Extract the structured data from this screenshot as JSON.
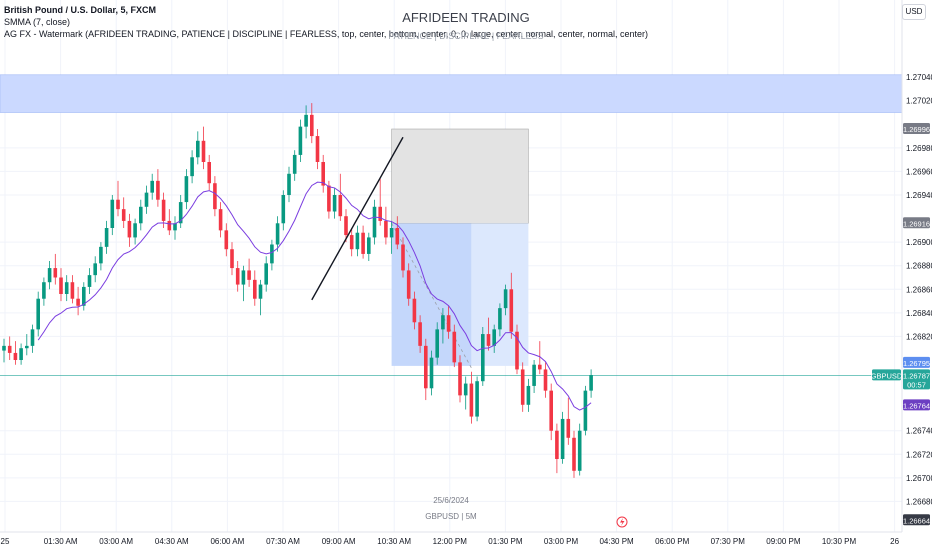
{
  "header": {
    "symbol_line": "British Pound / U.S. Dollar, 5, FXCM",
    "indicator_smma": "SMMA (7, close)",
    "indicator_watermark": "AG FX - Watermark (AFRIDEEN TRADING, PATIENCE | DISCIPLINE | FEARLESS, top, center, bottom, center, 0, 0, large, center, normal, center, normal, center)",
    "currency_button": "USD"
  },
  "watermark": {
    "title": "AFRIDEEN TRADING",
    "subtitle": "PATIENCE  |  DISCIPLINE  |  FEARLESS",
    "date": "25/6/2024",
    "symbol": "GBPUSD | 5M"
  },
  "chart_data": {
    "type": "candlestick",
    "symbol": "GBPUSD",
    "timeframe": "5",
    "x_ticks": [
      "25",
      "01:30 AM",
      "03:00 AM",
      "04:30 AM",
      "06:00 AM",
      "07:30 AM",
      "09:00 AM",
      "10:30 AM",
      "12:00 PM",
      "01:30 PM",
      "03:00 PM",
      "04:30 PM",
      "06:00 PM",
      "07:30 PM",
      "09:00 PM",
      "10:30 PM",
      "26"
    ],
    "y_ticks": [
      "1.27040",
      "1.27020",
      "1.26980",
      "1.26960",
      "1.26940",
      "1.26900",
      "1.26880",
      "1.26860",
      "1.26840",
      "1.26820",
      "1.26740",
      "1.26720",
      "1.26700",
      "1.26680"
    ],
    "ylim": [
      1.2666,
      1.2708
    ],
    "price_labels": [
      {
        "text": "1.26996",
        "value": 1.26996,
        "color": "#787b86"
      },
      {
        "text": "1.26916",
        "value": 1.26916,
        "color": "#787b86"
      },
      {
        "text": "1.26795",
        "value": 1.26795,
        "color": "#5d8ef0"
      },
      {
        "text": "GBPUSD",
        "value": 1.26787,
        "color": "#26a69a"
      },
      {
        "text": "1.26787",
        "value": 1.26787,
        "color": "#26a69a"
      },
      {
        "text": "00:57",
        "value": 1.26787,
        "color": "#26a69a"
      },
      {
        "text": "1.26764",
        "value": 1.26764,
        "color": "#6c3fc2"
      },
      {
        "text": "1.26664",
        "value": 1.26664,
        "color": "#363a45"
      }
    ],
    "current_price": 1.26787,
    "supply_zone": [
      1.2701,
      1.27042
    ],
    "short_position": {
      "entry": 1.26916,
      "stop": 1.26996,
      "target": 1.26795
    },
    "trend_line": [
      [
        1.26851,
        1.26989
      ]
    ],
    "series": [
      {
        "name": "GBPUSD",
        "points": [
          [
            1.26808,
            1.26818,
            1.26798,
            1.26812
          ],
          [
            1.26812,
            1.2682,
            1.268,
            1.26806
          ],
          [
            1.26806,
            1.26816,
            1.26796,
            1.268
          ],
          [
            1.268,
            1.26814,
            1.26796,
            1.2681
          ],
          [
            1.2681,
            1.26822,
            1.26804,
            1.26812
          ],
          [
            1.26812,
            1.2683,
            1.26806,
            1.26826
          ],
          [
            1.26826,
            1.26858,
            1.2682,
            1.26852
          ],
          [
            1.26852,
            1.2687,
            1.26846,
            1.26866
          ],
          [
            1.26866,
            1.26884,
            1.2686,
            1.26878
          ],
          [
            1.26878,
            1.2689,
            1.26864,
            1.2687
          ],
          [
            1.2687,
            1.26878,
            1.2685,
            1.26856
          ],
          [
            1.26856,
            1.26872,
            1.2685,
            1.26866
          ],
          [
            1.26866,
            1.26872,
            1.26848,
            1.26852
          ],
          [
            1.26852,
            1.26862,
            1.26838,
            1.26846
          ],
          [
            1.26846,
            1.26866,
            1.26842,
            1.26862
          ],
          [
            1.26862,
            1.26878,
            1.26856,
            1.26872
          ],
          [
            1.26872,
            1.26888,
            1.26866,
            1.26882
          ],
          [
            1.26882,
            1.269,
            1.26876,
            1.26896
          ],
          [
            1.26896,
            1.26918,
            1.2689,
            1.26912
          ],
          [
            1.26912,
            1.2694,
            1.26906,
            1.26936
          ],
          [
            1.26936,
            1.26952,
            1.26922,
            1.26928
          ],
          [
            1.26928,
            1.26938,
            1.26912,
            1.26918
          ],
          [
            1.26918,
            1.26924,
            1.26896,
            1.26904
          ],
          [
            1.26904,
            1.2692,
            1.26898,
            1.26916
          ],
          [
            1.26916,
            1.26936,
            1.2691,
            1.2693
          ],
          [
            1.2693,
            1.26948,
            1.26924,
            1.26942
          ],
          [
            1.26942,
            1.26958,
            1.26936,
            1.26952
          ],
          [
            1.26952,
            1.26962,
            1.2693,
            1.26936
          ],
          [
            1.26936,
            1.26942,
            1.26912,
            1.26918
          ],
          [
            1.26918,
            1.26928,
            1.26906,
            1.2691
          ],
          [
            1.2691,
            1.26922,
            1.26902,
            1.26916
          ],
          [
            1.26916,
            1.2694,
            1.26912,
            1.26934
          ],
          [
            1.26934,
            1.26962,
            1.26928,
            1.26956
          ],
          [
            1.26956,
            1.26978,
            1.2695,
            1.26972
          ],
          [
            1.26972,
            1.26994,
            1.26966,
            1.26986
          ],
          [
            1.26986,
            1.26998,
            1.26962,
            1.26968
          ],
          [
            1.26968,
            1.26974,
            1.26944,
            1.2695
          ],
          [
            1.2695,
            1.26956,
            1.26922,
            1.26928
          ],
          [
            1.26928,
            1.26934,
            1.26904,
            1.2691
          ],
          [
            1.2691,
            1.26916,
            1.26888,
            1.26894
          ],
          [
            1.26894,
            1.269,
            1.26872,
            1.26878
          ],
          [
            1.26878,
            1.26884,
            1.26858,
            1.26864
          ],
          [
            1.26864,
            1.2688,
            1.2685,
            1.26876
          ],
          [
            1.26876,
            1.26886,
            1.26862,
            1.26868
          ],
          [
            1.26868,
            1.26876,
            1.26846,
            1.26852
          ],
          [
            1.26852,
            1.26868,
            1.26838,
            1.26864
          ],
          [
            1.26864,
            1.26888,
            1.26858,
            1.26882
          ],
          [
            1.26882,
            1.26902,
            1.26876,
            1.26898
          ],
          [
            1.26898,
            1.26922,
            1.26892,
            1.26916
          ],
          [
            1.26916,
            1.26944,
            1.2691,
            1.2694
          ],
          [
            1.2694,
            1.26964,
            1.26934,
            1.26958
          ],
          [
            1.26958,
            1.26978,
            1.26952,
            1.26974
          ],
          [
            1.26974,
            1.27004,
            1.26968,
            1.26998
          ],
          [
            1.26998,
            1.27016,
            1.26988,
            1.27008
          ],
          [
            1.27008,
            1.27018,
            1.26984,
            1.2699
          ],
          [
            1.2699,
            1.26996,
            1.26962,
            1.26968
          ],
          [
            1.26968,
            1.26974,
            1.26942,
            1.26948
          ],
          [
            1.26948,
            1.26952,
            1.2692,
            1.26926
          ],
          [
            1.26926,
            1.26946,
            1.2692,
            1.2694
          ],
          [
            1.2694,
            1.26958,
            1.26918,
            1.26922
          ],
          [
            1.26922,
            1.26928,
            1.269,
            1.26906
          ],
          [
            1.26906,
            1.26912,
            1.26888,
            1.26894
          ],
          [
            1.26894,
            1.26914,
            1.26888,
            1.26908
          ],
          [
            1.26908,
            1.26914,
            1.26886,
            1.2689
          ],
          [
            1.2689,
            1.26908,
            1.26884,
            1.26904
          ],
          [
            1.26904,
            1.26936,
            1.26898,
            1.2693
          ],
          [
            1.2693,
            1.26954,
            1.26914,
            1.26918
          ],
          [
            1.26918,
            1.2693,
            1.26898,
            1.26904
          ],
          [
            1.26904,
            1.26918,
            1.2689,
            1.26912
          ],
          [
            1.26912,
            1.26922,
            1.26894,
            1.26898
          ],
          [
            1.26898,
            1.26904,
            1.2687,
            1.26876
          ],
          [
            1.26876,
            1.26882,
            1.26846,
            1.26852
          ],
          [
            1.26852,
            1.26858,
            1.26826,
            1.26832
          ],
          [
            1.26832,
            1.26838,
            1.26806,
            1.26812
          ],
          [
            1.26812,
            1.26818,
            1.26766,
            1.26776
          ],
          [
            1.26776,
            1.26808,
            1.2677,
            1.26802
          ],
          [
            1.26802,
            1.26832,
            1.26796,
            1.26826
          ],
          [
            1.26826,
            1.26844,
            1.26814,
            1.26838
          ],
          [
            1.26838,
            1.26846,
            1.26818,
            1.26824
          ],
          [
            1.26824,
            1.2683,
            1.26794,
            1.26798
          ],
          [
            1.26798,
            1.26804,
            1.26764,
            1.2677
          ],
          [
            1.2677,
            1.26786,
            1.26758,
            1.2678
          ],
          [
            1.2678,
            1.2679,
            1.26746,
            1.26752
          ],
          [
            1.26752,
            1.26786,
            1.26748,
            1.26782
          ],
          [
            1.26782,
            1.26828,
            1.26778,
            1.26822
          ],
          [
            1.26822,
            1.26836,
            1.26808,
            1.26812
          ],
          [
            1.26812,
            1.2683,
            1.26806,
            1.26826
          ],
          [
            1.26826,
            1.26848,
            1.2682,
            1.26844
          ],
          [
            1.26844,
            1.26864,
            1.26838,
            1.2686
          ],
          [
            1.2686,
            1.26874,
            1.26818,
            1.26824
          ],
          [
            1.26824,
            1.2683,
            1.26788,
            1.26792
          ],
          [
            1.26792,
            1.26798,
            1.26756,
            1.26762
          ],
          [
            1.26762,
            1.26784,
            1.26756,
            1.26778
          ],
          [
            1.26778,
            1.268,
            1.26772,
            1.26796
          ],
          [
            1.26796,
            1.26816,
            1.26788,
            1.26792
          ],
          [
            1.26792,
            1.26798,
            1.26768,
            1.26774
          ],
          [
            1.26774,
            1.2678,
            1.26732,
            1.2674
          ],
          [
            1.2674,
            1.26746,
            1.26704,
            1.26716
          ],
          [
            1.26716,
            1.26756,
            1.26712,
            1.2675
          ],
          [
            1.2675,
            1.26768,
            1.26728,
            1.26734
          ],
          [
            1.26734,
            1.2674,
            1.267,
            1.26706
          ],
          [
            1.26706,
            1.26746,
            1.26702,
            1.2674
          ],
          [
            1.2674,
            1.26778,
            1.26736,
            1.26774
          ],
          [
            1.26774,
            1.26792,
            1.26768,
            1.26787
          ]
        ]
      },
      {
        "name": "SMMA (7, close)"
      }
    ]
  }
}
